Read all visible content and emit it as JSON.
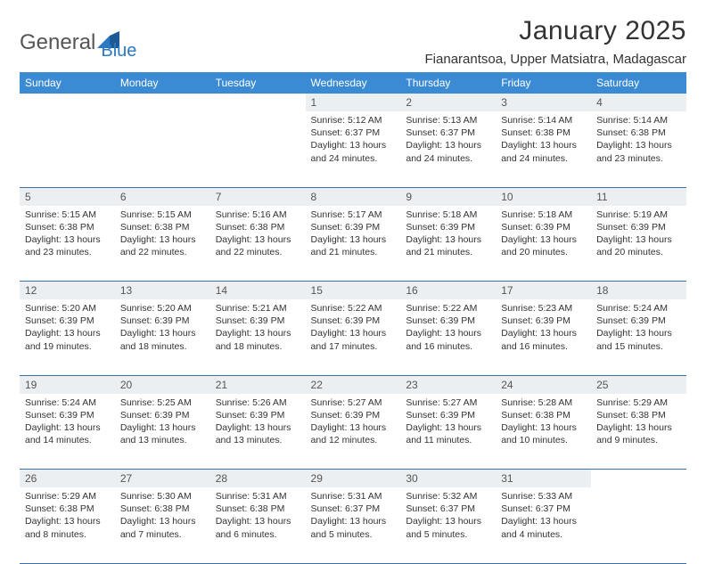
{
  "logo": {
    "text1": "General",
    "text2": "Blue"
  },
  "title": "January 2025",
  "location": "Fianarantsoa, Upper Matsiatra, Madagascar",
  "colors": {
    "header_bg": "#3b8bd4",
    "header_text": "#ffffff",
    "daynum_bg": "#eceff1",
    "row_border": "#3b6fa6",
    "logo_gray": "#555555",
    "logo_blue": "#2b79c2",
    "text": "#333333",
    "background": "#ffffff"
  },
  "day_headers": [
    "Sunday",
    "Monday",
    "Tuesday",
    "Wednesday",
    "Thursday",
    "Friday",
    "Saturday"
  ],
  "weeks": [
    [
      null,
      null,
      null,
      {
        "n": "1",
        "sunrise": "5:12 AM",
        "sunset": "6:37 PM",
        "daylight": "13 hours and 24 minutes."
      },
      {
        "n": "2",
        "sunrise": "5:13 AM",
        "sunset": "6:37 PM",
        "daylight": "13 hours and 24 minutes."
      },
      {
        "n": "3",
        "sunrise": "5:14 AM",
        "sunset": "6:38 PM",
        "daylight": "13 hours and 24 minutes."
      },
      {
        "n": "4",
        "sunrise": "5:14 AM",
        "sunset": "6:38 PM",
        "daylight": "13 hours and 23 minutes."
      }
    ],
    [
      {
        "n": "5",
        "sunrise": "5:15 AM",
        "sunset": "6:38 PM",
        "daylight": "13 hours and 23 minutes."
      },
      {
        "n": "6",
        "sunrise": "5:15 AM",
        "sunset": "6:38 PM",
        "daylight": "13 hours and 22 minutes."
      },
      {
        "n": "7",
        "sunrise": "5:16 AM",
        "sunset": "6:38 PM",
        "daylight": "13 hours and 22 minutes."
      },
      {
        "n": "8",
        "sunrise": "5:17 AM",
        "sunset": "6:39 PM",
        "daylight": "13 hours and 21 minutes."
      },
      {
        "n": "9",
        "sunrise": "5:18 AM",
        "sunset": "6:39 PM",
        "daylight": "13 hours and 21 minutes."
      },
      {
        "n": "10",
        "sunrise": "5:18 AM",
        "sunset": "6:39 PM",
        "daylight": "13 hours and 20 minutes."
      },
      {
        "n": "11",
        "sunrise": "5:19 AM",
        "sunset": "6:39 PM",
        "daylight": "13 hours and 20 minutes."
      }
    ],
    [
      {
        "n": "12",
        "sunrise": "5:20 AM",
        "sunset": "6:39 PM",
        "daylight": "13 hours and 19 minutes."
      },
      {
        "n": "13",
        "sunrise": "5:20 AM",
        "sunset": "6:39 PM",
        "daylight": "13 hours and 18 minutes."
      },
      {
        "n": "14",
        "sunrise": "5:21 AM",
        "sunset": "6:39 PM",
        "daylight": "13 hours and 18 minutes."
      },
      {
        "n": "15",
        "sunrise": "5:22 AM",
        "sunset": "6:39 PM",
        "daylight": "13 hours and 17 minutes."
      },
      {
        "n": "16",
        "sunrise": "5:22 AM",
        "sunset": "6:39 PM",
        "daylight": "13 hours and 16 minutes."
      },
      {
        "n": "17",
        "sunrise": "5:23 AM",
        "sunset": "6:39 PM",
        "daylight": "13 hours and 16 minutes."
      },
      {
        "n": "18",
        "sunrise": "5:24 AM",
        "sunset": "6:39 PM",
        "daylight": "13 hours and 15 minutes."
      }
    ],
    [
      {
        "n": "19",
        "sunrise": "5:24 AM",
        "sunset": "6:39 PM",
        "daylight": "13 hours and 14 minutes."
      },
      {
        "n": "20",
        "sunrise": "5:25 AM",
        "sunset": "6:39 PM",
        "daylight": "13 hours and 13 minutes."
      },
      {
        "n": "21",
        "sunrise": "5:26 AM",
        "sunset": "6:39 PM",
        "daylight": "13 hours and 13 minutes."
      },
      {
        "n": "22",
        "sunrise": "5:27 AM",
        "sunset": "6:39 PM",
        "daylight": "13 hours and 12 minutes."
      },
      {
        "n": "23",
        "sunrise": "5:27 AM",
        "sunset": "6:39 PM",
        "daylight": "13 hours and 11 minutes."
      },
      {
        "n": "24",
        "sunrise": "5:28 AM",
        "sunset": "6:38 PM",
        "daylight": "13 hours and 10 minutes."
      },
      {
        "n": "25",
        "sunrise": "5:29 AM",
        "sunset": "6:38 PM",
        "daylight": "13 hours and 9 minutes."
      }
    ],
    [
      {
        "n": "26",
        "sunrise": "5:29 AM",
        "sunset": "6:38 PM",
        "daylight": "13 hours and 8 minutes."
      },
      {
        "n": "27",
        "sunrise": "5:30 AM",
        "sunset": "6:38 PM",
        "daylight": "13 hours and 7 minutes."
      },
      {
        "n": "28",
        "sunrise": "5:31 AM",
        "sunset": "6:38 PM",
        "daylight": "13 hours and 6 minutes."
      },
      {
        "n": "29",
        "sunrise": "5:31 AM",
        "sunset": "6:37 PM",
        "daylight": "13 hours and 5 minutes."
      },
      {
        "n": "30",
        "sunrise": "5:32 AM",
        "sunset": "6:37 PM",
        "daylight": "13 hours and 5 minutes."
      },
      {
        "n": "31",
        "sunrise": "5:33 AM",
        "sunset": "6:37 PM",
        "daylight": "13 hours and 4 minutes."
      },
      null
    ]
  ],
  "labels": {
    "sunrise": "Sunrise: ",
    "sunset": "Sunset: ",
    "daylight": "Daylight: "
  }
}
